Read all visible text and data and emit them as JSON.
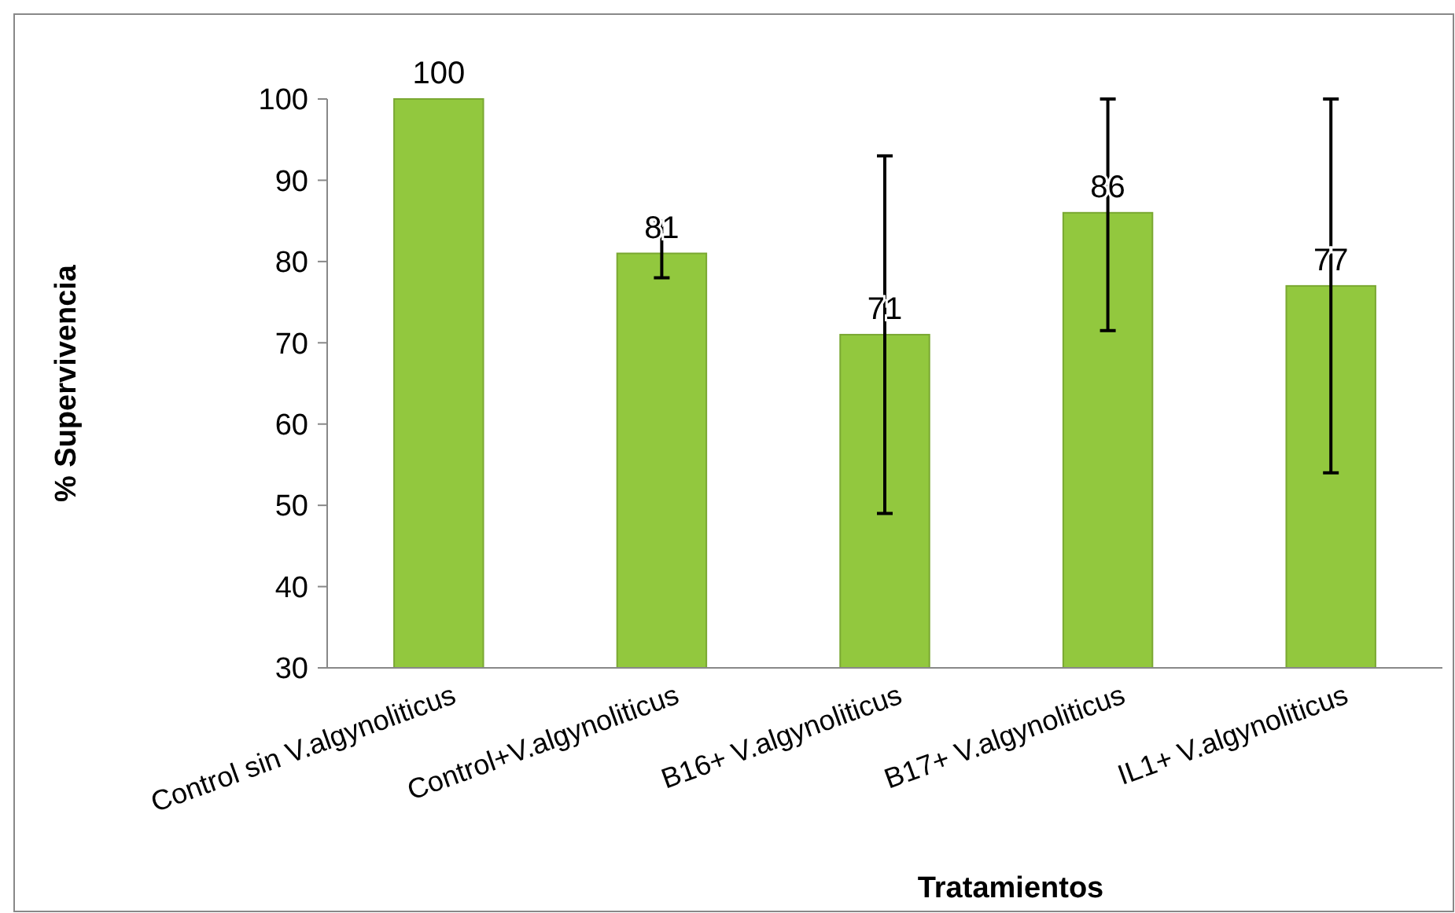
{
  "chart_data": {
    "type": "bar",
    "xlabel": "Tratamientos",
    "ylabel": "% Supervivencia",
    "categories": [
      "Control sin V.algynoliticus",
      "Control+V.algynoliticus",
      "B16+ V.algynoliticus",
      "B17+ V.algynoliticus",
      "IL1+ V.algynoliticus"
    ],
    "values": [
      100,
      81,
      71,
      86,
      77
    ],
    "errors": [
      null,
      [
        78,
        85
      ],
      [
        49,
        93
      ],
      [
        71.5,
        100
      ],
      [
        54,
        100
      ]
    ],
    "color": "#92c83e",
    "ylim": [
      30,
      100
    ],
    "yticks": [
      30,
      40,
      50,
      60,
      70,
      80,
      90,
      100
    ],
    "grid": false,
    "data_labels": true
  }
}
